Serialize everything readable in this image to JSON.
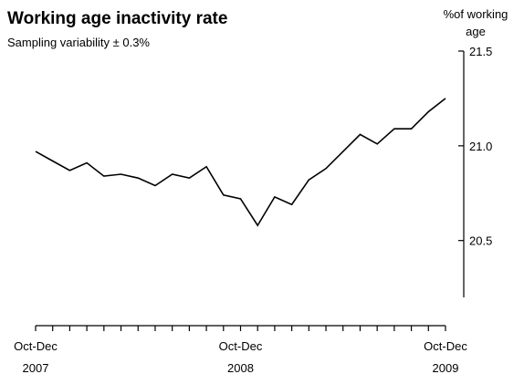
{
  "chart_data": {
    "type": "line",
    "title": "Working age inactivity rate",
    "subtitle": "Sampling variability ± 0.3%",
    "ylabel_lines": [
      "%of working",
      "age"
    ],
    "yaxis_position": "right",
    "ylim": [
      20.2,
      21.5
    ],
    "yticks": [
      "21.5",
      "21.0",
      "20.5"
    ],
    "ytick_values": [
      21.5,
      21.0,
      20.5
    ],
    "xlabels": [
      {
        "index": 0,
        "lines": [
          "Oct-Dec",
          "2007"
        ]
      },
      {
        "index": 12,
        "lines": [
          "Oct-Dec",
          "2008"
        ]
      },
      {
        "index": 24,
        "lines": [
          "Oct-Dec",
          "2009"
        ]
      }
    ],
    "series": [
      {
        "values": [
          20.97,
          20.92,
          20.87,
          20.91,
          20.84,
          20.85,
          20.83,
          20.79,
          20.85,
          20.83,
          20.89,
          20.74,
          20.72,
          20.58,
          20.73,
          20.69,
          20.82,
          20.88,
          20.97,
          21.06,
          21.01,
          21.09,
          21.09,
          21.18,
          21.25
        ]
      }
    ],
    "grid": false,
    "line_color": "#000000"
  }
}
